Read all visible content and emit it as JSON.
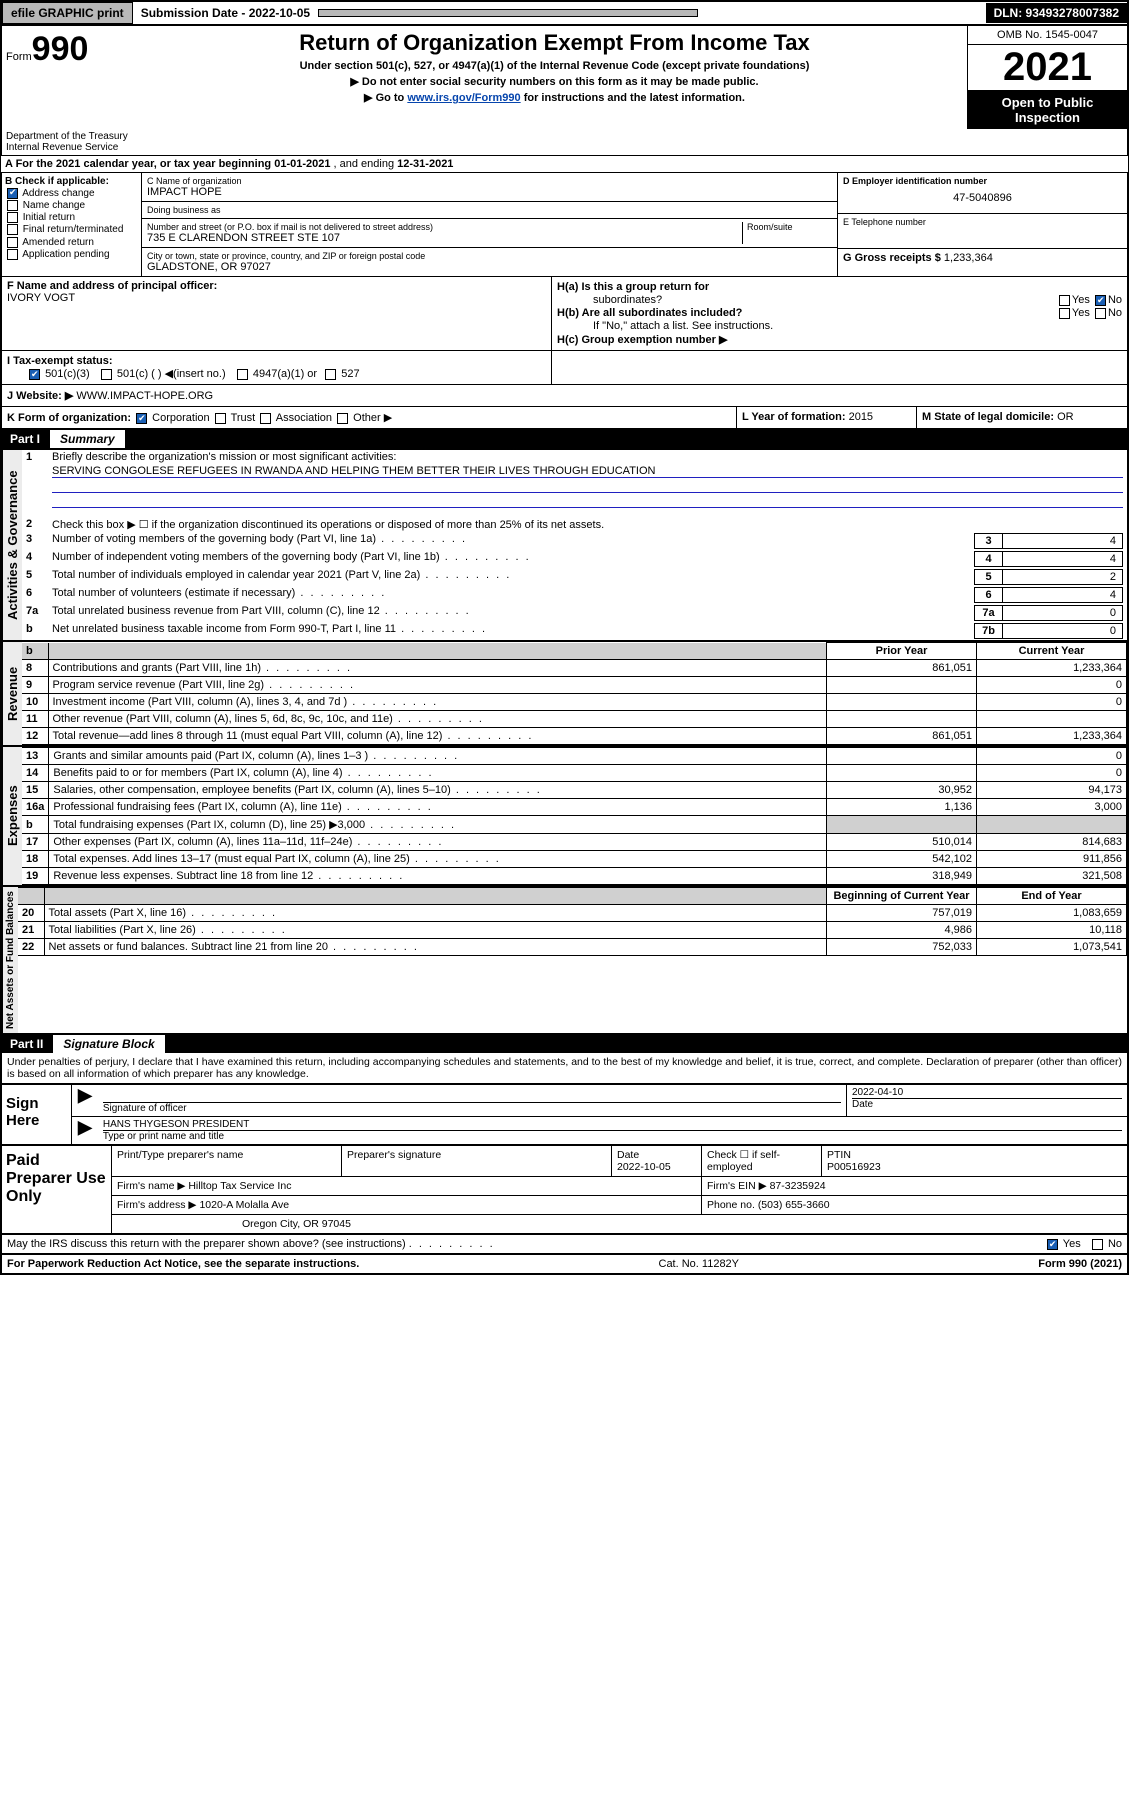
{
  "top": {
    "efile": "efile GRAPHIC print",
    "subdate_lbl": "Submission Date - 2022-10-05",
    "dln": "DLN: 93493278007382"
  },
  "header": {
    "form_prefix": "Form",
    "form_no": "990",
    "title": "Return of Organization Exempt From Income Tax",
    "sub1": "Under section 501(c), 527, or 4947(a)(1) of the Internal Revenue Code (except private foundations)",
    "sub2": "▶ Do not enter social security numbers on this form as it may be made public.",
    "sub3_pre": "▶ Go to ",
    "sub3_link": "www.irs.gov/Form990",
    "sub3_post": " for instructions and the latest information.",
    "omb": "OMB No. 1545-0047",
    "year": "2021",
    "open": "Open to Public Inspection",
    "dept": "Department of the Treasury",
    "irs": "Internal Revenue Service"
  },
  "rowA": {
    "text_pre": "A For the 2021 calendar year, or tax year beginning ",
    "begin": "01-01-2021",
    "mid": " , and ending ",
    "end": "12-31-2021"
  },
  "colB": {
    "hdr": "B Check if applicable:",
    "items": [
      "Address change",
      "Name change",
      "Initial return",
      "Final return/terminated",
      "Amended return",
      "Application pending"
    ],
    "checked_idx": 0
  },
  "colC": {
    "name_lbl": "C Name of organization",
    "name": "IMPACT HOPE",
    "dba_lbl": "Doing business as",
    "dba": "",
    "addr_lbl": "Number and street (or P.O. box if mail is not delivered to street address)",
    "room_lbl": "Room/suite",
    "addr": "735 E CLARENDON STREET STE 107",
    "city_lbl": "City or town, state or province, country, and ZIP or foreign postal code",
    "city": "GLADSTONE, OR  97027"
  },
  "colD": {
    "ein_lbl": "D Employer identification number",
    "ein": "47-5040896",
    "tel_lbl": "E Telephone number",
    "tel": "",
    "gross_lbl": "G Gross receipts $",
    "gross": "1,233,364"
  },
  "rowF": {
    "lbl": "F Name and address of principal officer:",
    "val": "IVORY VOGT"
  },
  "rowH": {
    "ha_lbl": "H(a)  Is this a group return for",
    "ha_lbl2": "subordinates?",
    "ha_yes": "Yes",
    "ha_no": "No",
    "hb_lbl": "H(b)  Are all subordinates included?",
    "hb_note": "If \"No,\" attach a list. See instructions.",
    "hc_lbl": "H(c)  Group exemption number ▶"
  },
  "rowI": {
    "lbl": "I   Tax-exempt status:",
    "opt1": "501(c)(3)",
    "opt2": "501(c) (   ) ◀(insert no.)",
    "opt3": "4947(a)(1) or",
    "opt4": "527"
  },
  "rowJ": {
    "lbl": "J   Website: ▶",
    "val": "WWW.IMPACT-HOPE.ORG"
  },
  "rowK": {
    "lbl": "K Form of organization:",
    "o1": "Corporation",
    "o2": "Trust",
    "o3": "Association",
    "o4": "Other ▶"
  },
  "rowL": {
    "lbl": "L Year of formation:",
    "val": "2015"
  },
  "rowM": {
    "lbl": "M State of legal domicile:",
    "val": "OR"
  },
  "part1": {
    "num": "Part I",
    "title": "Summary"
  },
  "gov": {
    "tab": "Activities & Governance",
    "l1_lbl": "Briefly describe the organization's mission or most significant activities:",
    "l1_val": "SERVING CONGOLESE REFUGEES IN RWANDA AND HELPING THEM BETTER THEIR LIVES THROUGH EDUCATION",
    "l2": "Check this box ▶ ☐  if the organization discontinued its operations or disposed of more than 25% of its net assets.",
    "rows": [
      {
        "n": "3",
        "t": "Number of voting members of the governing body (Part VI, line 1a)",
        "v": "4"
      },
      {
        "n": "4",
        "t": "Number of independent voting members of the governing body (Part VI, line 1b)",
        "v": "4"
      },
      {
        "n": "5",
        "t": "Total number of individuals employed in calendar year 2021 (Part V, line 2a)",
        "v": "2"
      },
      {
        "n": "6",
        "t": "Total number of volunteers (estimate if necessary)",
        "v": "4"
      },
      {
        "n": "7a",
        "t": "Total unrelated business revenue from Part VIII, column (C), line 12",
        "v": "0"
      },
      {
        "n": "  b",
        "t": "Net unrelated business taxable income from Form 990-T, Part I, line 11",
        "nn": "7b",
        "v": "0"
      }
    ]
  },
  "fin_hdr": {
    "py": "Prior Year",
    "cy": "Current Year"
  },
  "rev": {
    "tab": "Revenue",
    "rows": [
      {
        "n": "8",
        "t": "Contributions and grants (Part VIII, line 1h)",
        "py": "861,051",
        "cy": "1,233,364"
      },
      {
        "n": "9",
        "t": "Program service revenue (Part VIII, line 2g)",
        "py": "",
        "cy": "0"
      },
      {
        "n": "10",
        "t": "Investment income (Part VIII, column (A), lines 3, 4, and 7d )",
        "py": "",
        "cy": "0"
      },
      {
        "n": "11",
        "t": "Other revenue (Part VIII, column (A), lines 5, 6d, 8c, 9c, 10c, and 11e)",
        "py": "",
        "cy": ""
      },
      {
        "n": "12",
        "t": "Total revenue—add lines 8 through 11 (must equal Part VIII, column (A), line 12)",
        "py": "861,051",
        "cy": "1,233,364"
      }
    ]
  },
  "exp": {
    "tab": "Expenses",
    "rows": [
      {
        "n": "13",
        "t": "Grants and similar amounts paid (Part IX, column (A), lines 1–3 )",
        "py": "",
        "cy": "0"
      },
      {
        "n": "14",
        "t": "Benefits paid to or for members (Part IX, column (A), line 4)",
        "py": "",
        "cy": "0"
      },
      {
        "n": "15",
        "t": "Salaries, other compensation, employee benefits (Part IX, column (A), lines 5–10)",
        "py": "30,952",
        "cy": "94,173"
      },
      {
        "n": "16a",
        "t": "Professional fundraising fees (Part IX, column (A), line 11e)",
        "py": "1,136",
        "cy": "3,000"
      },
      {
        "n": "  b",
        "t": "Total fundraising expenses (Part IX, column (D), line 25) ▶3,000",
        "py": "shade",
        "cy": "shade"
      },
      {
        "n": "17",
        "t": "Other expenses (Part IX, column (A), lines 11a–11d, 11f–24e)",
        "py": "510,014",
        "cy": "814,683"
      },
      {
        "n": "18",
        "t": "Total expenses. Add lines 13–17 (must equal Part IX, column (A), line 25)",
        "py": "542,102",
        "cy": "911,856"
      },
      {
        "n": "19",
        "t": "Revenue less expenses. Subtract line 18 from line 12",
        "py": "318,949",
        "cy": "321,508"
      }
    ]
  },
  "net_hdr": {
    "py": "Beginning of Current Year",
    "cy": "End of Year"
  },
  "net": {
    "tab": "Net Assets or Fund Balances",
    "rows": [
      {
        "n": "20",
        "t": "Total assets (Part X, line 16)",
        "py": "757,019",
        "cy": "1,083,659"
      },
      {
        "n": "21",
        "t": "Total liabilities (Part X, line 26)",
        "py": "4,986",
        "cy": "10,118"
      },
      {
        "n": "22",
        "t": "Net assets or fund balances. Subtract line 21 from line 20",
        "py": "752,033",
        "cy": "1,073,541"
      }
    ]
  },
  "part2": {
    "num": "Part II",
    "title": "Signature Block"
  },
  "penalty": "Under penalties of perjury, I declare that I have examined this return, including accompanying schedules and statements, and to the best of my knowledge and belief, it is true, correct, and complete. Declaration of preparer (other than officer) is based on all information of which preparer has any knowledge.",
  "sign": {
    "left": "Sign Here",
    "sig_lbl": "Signature of officer",
    "date_lbl": "Date",
    "date": "2022-04-10",
    "name": "HANS THYGESON  PRESIDENT",
    "name_lbl": "Type or print name and title"
  },
  "paid": {
    "left": "Paid Preparer Use Only",
    "h1": "Print/Type preparer's name",
    "h2": "Preparer's signature",
    "h3": "Date",
    "h3v": "2022-10-05",
    "h4": "Check ☐ if self-employed",
    "h5": "PTIN",
    "h5v": "P00516923",
    "firm_lbl": "Firm's name    ▶",
    "firm": "Hilltop Tax Service Inc",
    "ein_lbl": "Firm's EIN ▶",
    "ein": "87-3235924",
    "addr_lbl": "Firm's address ▶",
    "addr1": "1020-A Molalla Ave",
    "addr2": "Oregon City, OR  97045",
    "ph_lbl": "Phone no.",
    "ph": "(503) 655-3660"
  },
  "foot": {
    "q": "May the IRS discuss this return with the preparer shown above? (see instructions)",
    "yes": "Yes",
    "no": "No",
    "pra": "For Paperwork Reduction Act Notice, see the separate instructions.",
    "cat": "Cat. No. 11282Y",
    "form": "Form 990 (2021)"
  },
  "colors": {
    "link": "#0645ad",
    "check": "#1a5fb4",
    "shade": "#d0d0d0"
  }
}
